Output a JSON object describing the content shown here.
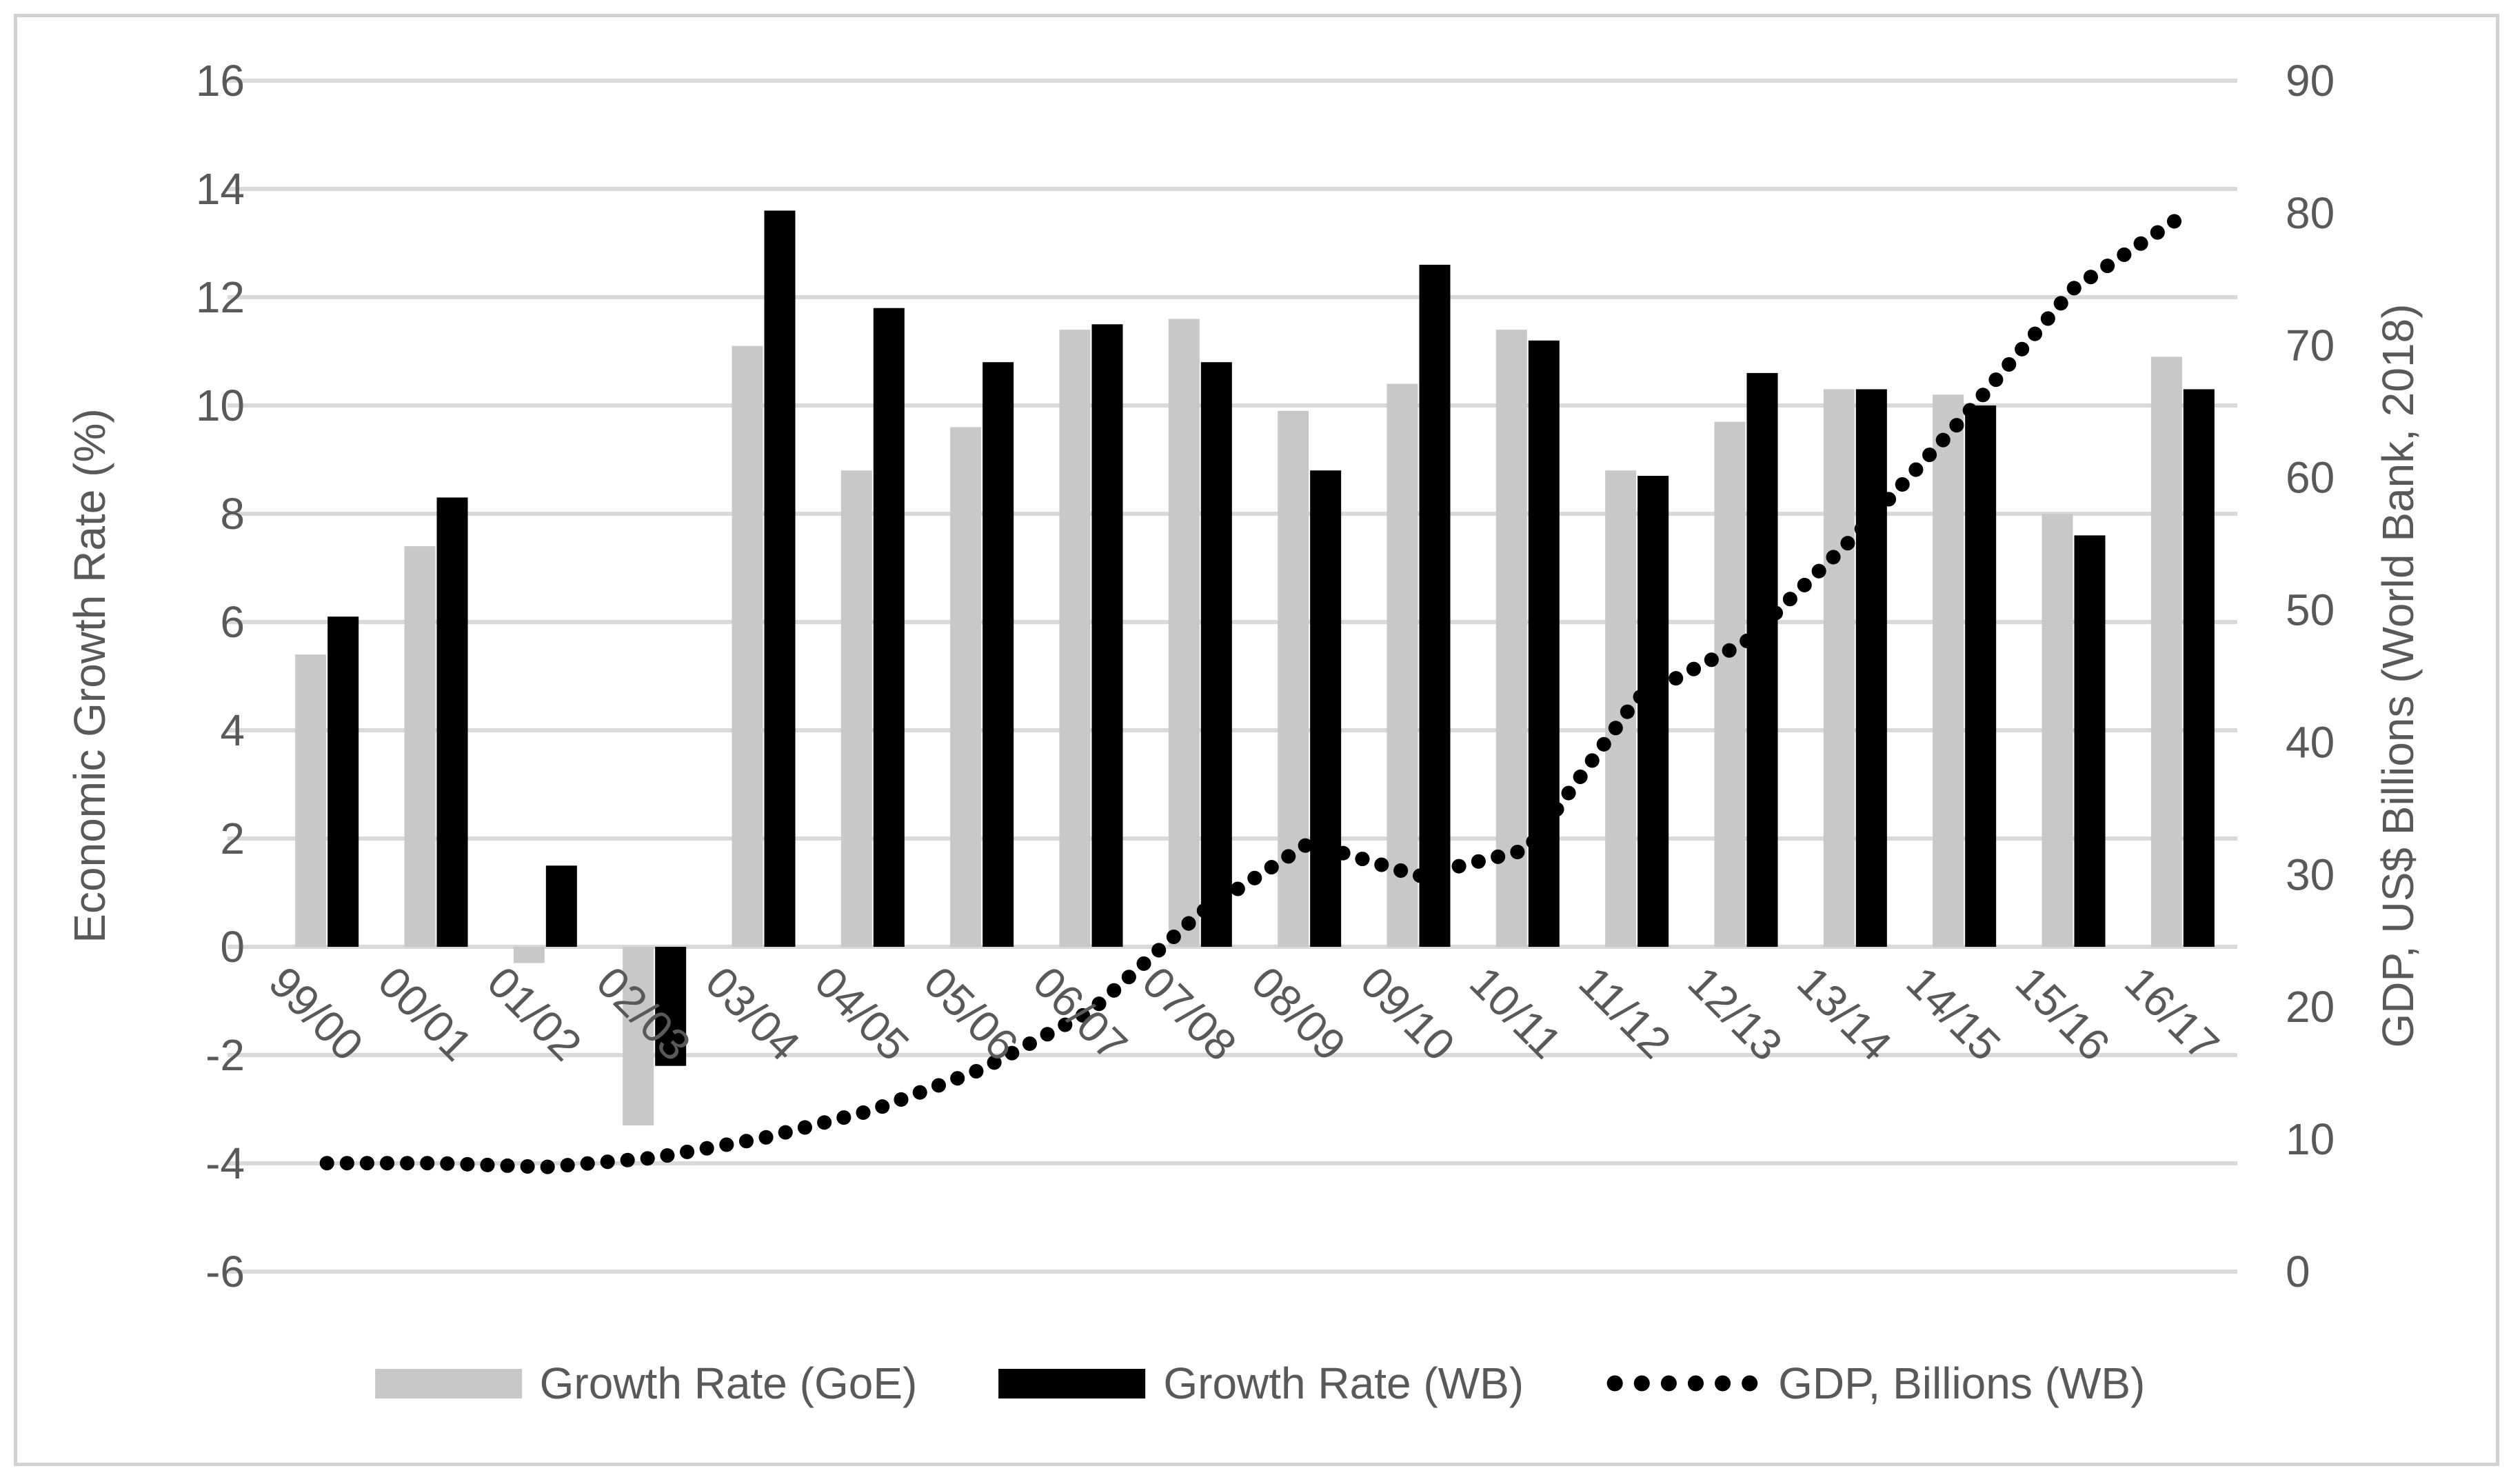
{
  "chart_data": {
    "type": "bar",
    "subtype": "grouped-bars-with-dotted-line-combo",
    "categories": [
      "99/00",
      "00/01",
      "01/02",
      "02/03",
      "03/04",
      "04/05",
      "05/06",
      "06/07",
      "07/08",
      "08/09",
      "09/10",
      "10/11",
      "11/12",
      "12/13",
      "13/14",
      "14/15",
      "15/16",
      "16/17"
    ],
    "series": [
      {
        "name": "Growth Rate (GoE)",
        "type": "bar",
        "axis": "left",
        "values": [
          5.4,
          7.4,
          -0.3,
          -3.3,
          11.1,
          8.8,
          9.6,
          11.4,
          11.6,
          9.9,
          10.4,
          11.4,
          8.8,
          9.7,
          10.3,
          10.2,
          8.0,
          10.9
        ]
      },
      {
        "name": "Growth Rate (WB)",
        "type": "bar",
        "axis": "left",
        "values": [
          6.1,
          8.3,
          1.5,
          -2.2,
          13.6,
          11.8,
          10.8,
          11.5,
          10.8,
          8.8,
          12.6,
          11.2,
          8.7,
          10.6,
          10.3,
          10.0,
          7.6,
          10.3
        ]
      },
      {
        "name": "GDP, Billions (WB)",
        "type": "dotted-line",
        "axis": "right",
        "values": [
          8.2,
          8.2,
          7.9,
          8.6,
          10.1,
          12.2,
          15.3,
          19.7,
          27.1,
          32.4,
          29.9,
          31.9,
          43.3,
          47.6,
          55.6,
          64.6,
          74.3,
          79.8
        ]
      }
    ],
    "title": "",
    "xlabel": "",
    "left_axis": {
      "title": "Economic Growth Rate (%)",
      "min": -6,
      "max": 16,
      "step": 2
    },
    "right_axis": {
      "title": "GDP, US$ Billions (World Bank, 2018)",
      "min": 0,
      "max": 90,
      "step": 10
    },
    "grid": true,
    "legend_position": "bottom",
    "x_label_rotation_deg": 45
  },
  "legend": {
    "items": [
      {
        "label": "Growth Rate (GoE)",
        "marker": "gray-swatch"
      },
      {
        "label": "Growth Rate (WB)",
        "marker": "black-swatch"
      },
      {
        "label": "GDP, Billions (WB)",
        "marker": "dotted-line-sample"
      }
    ]
  },
  "titles": {
    "left_axis": "Economic Growth Rate (%)",
    "right_axis": "GDP, US$ Billions (World Bank, 2018)"
  },
  "colors": {
    "bar_goe": "#c8c8c8",
    "bar_wb": "#000000",
    "gdp_line": "#000000",
    "text": "#595959",
    "gridline": "#d9d9d9",
    "frame": "#d2d2d2",
    "background": "#ffffff"
  }
}
